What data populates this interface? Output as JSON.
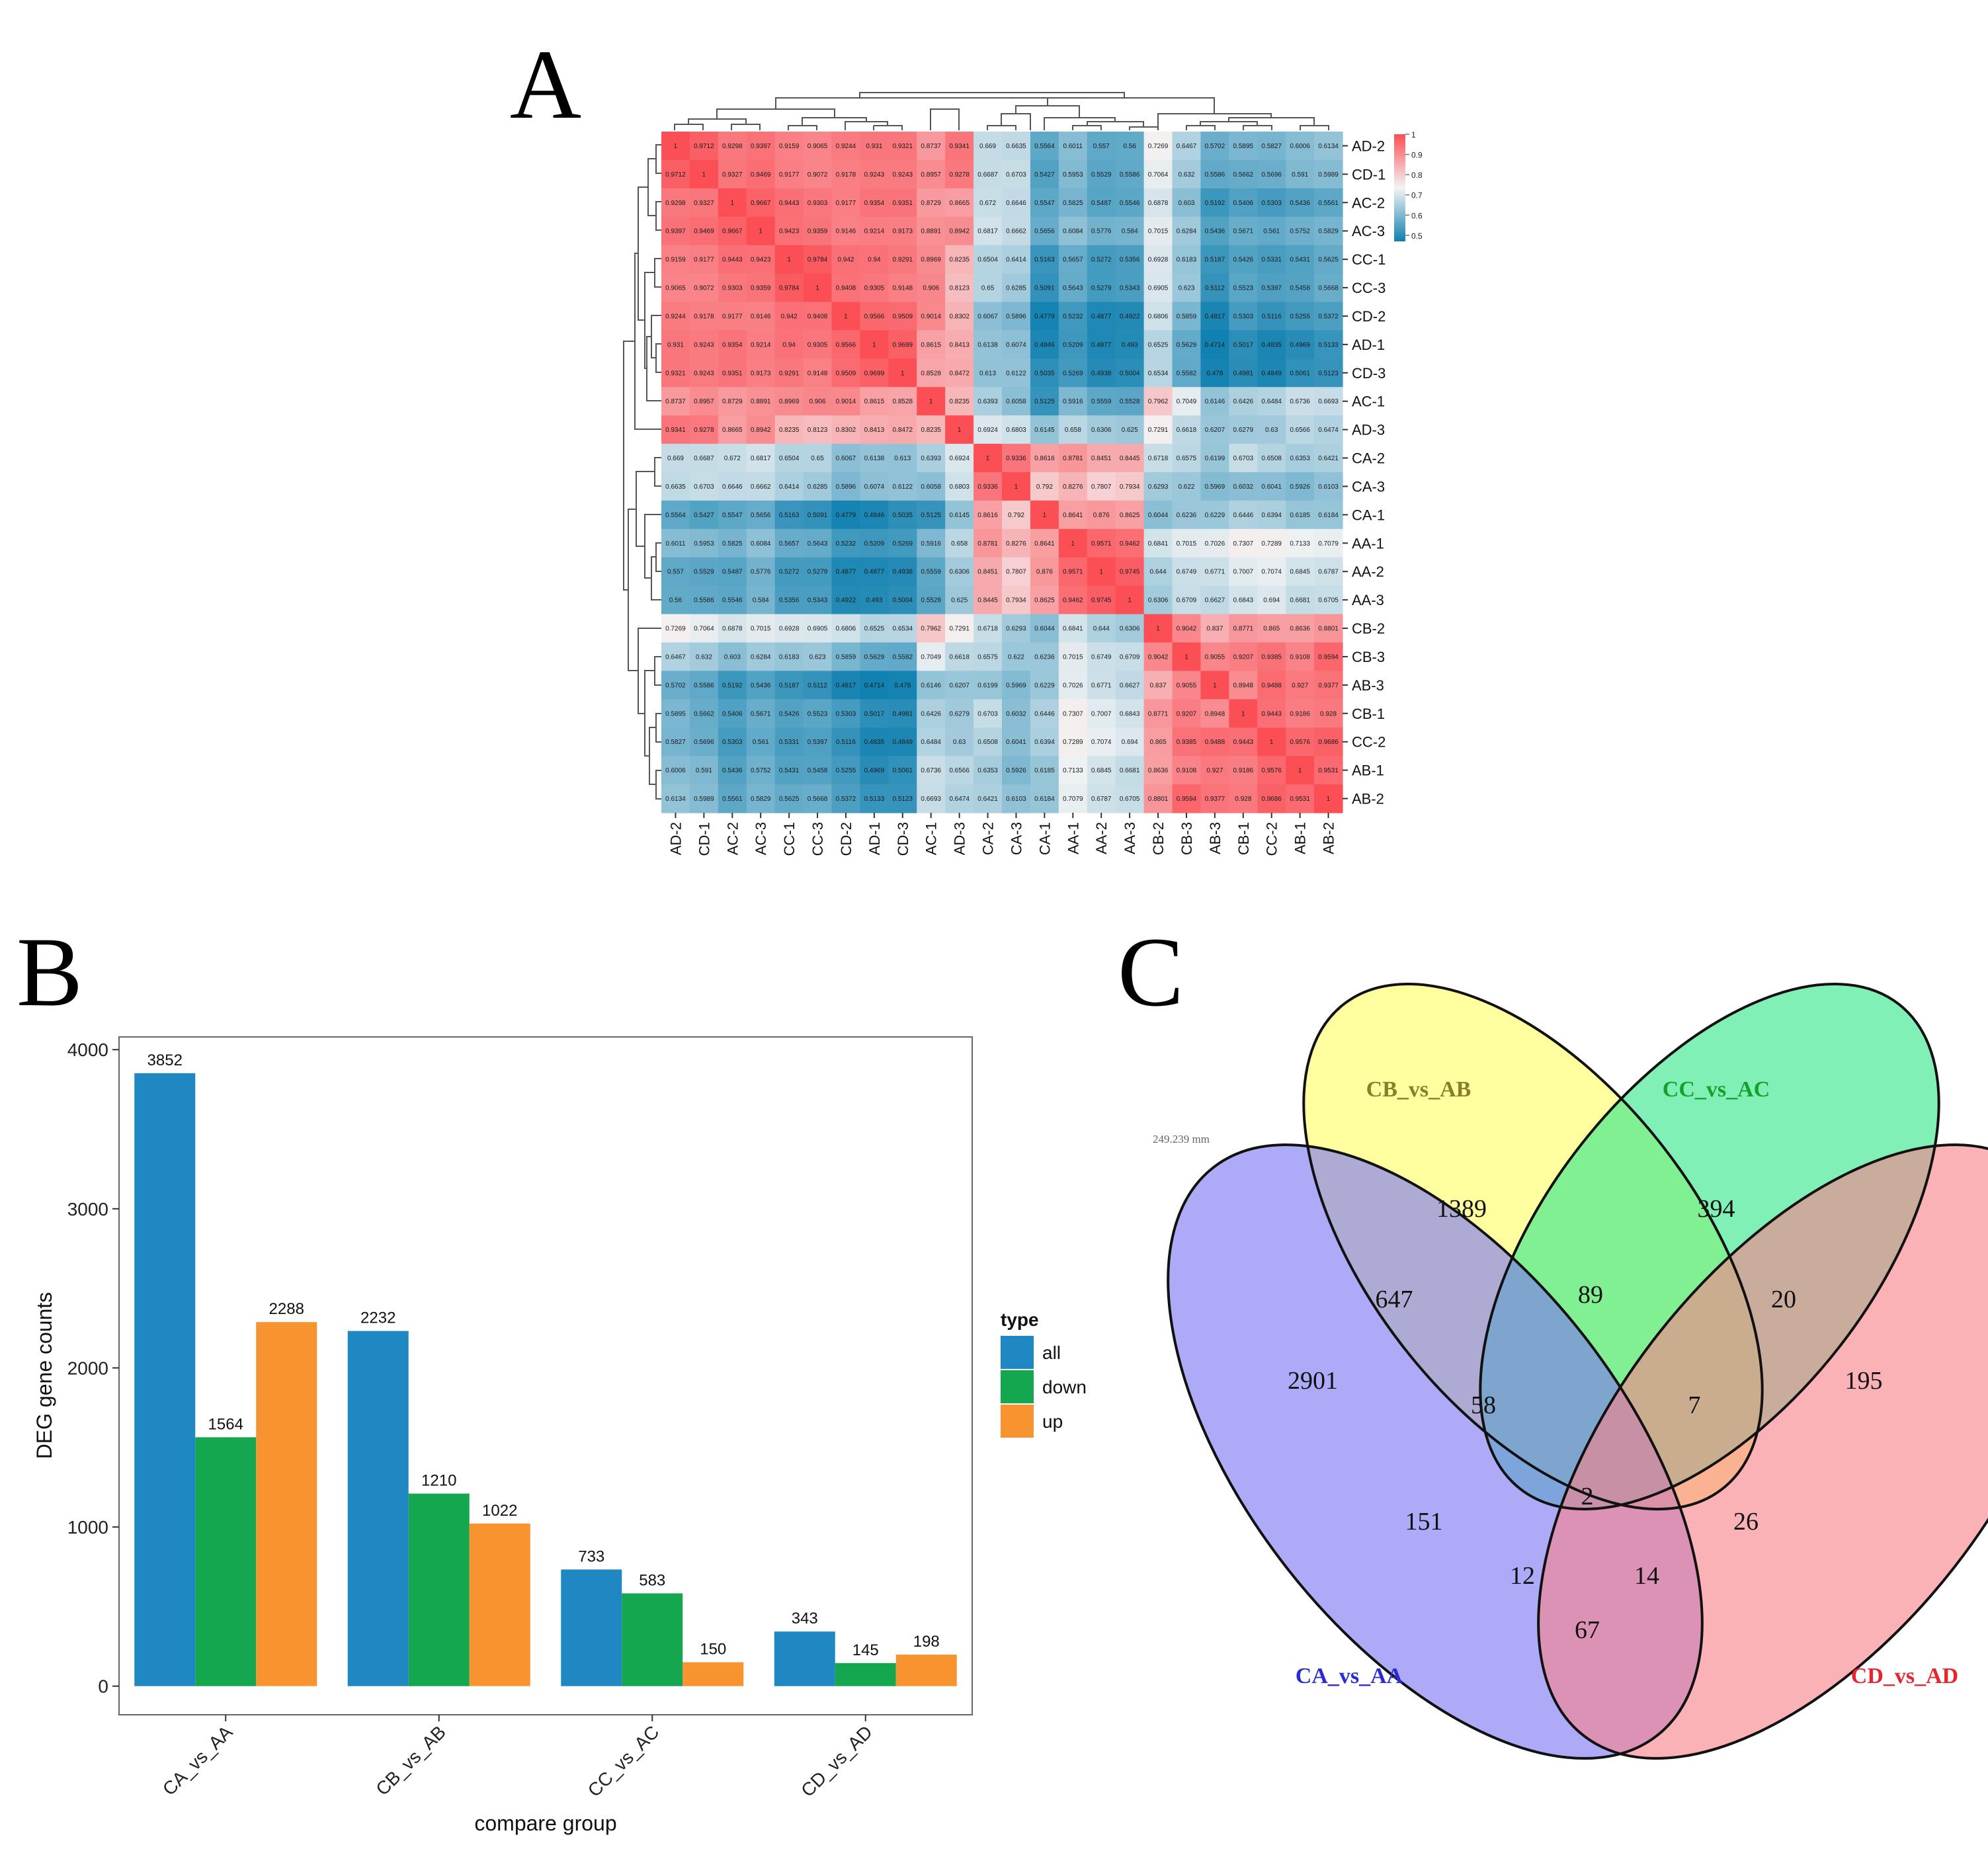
{
  "panels": {
    "a": "A",
    "b": "B",
    "c": "C"
  },
  "chart_data": [
    {
      "type": "heatmap",
      "panel": "A",
      "rows": [
        "AD-2",
        "CD-1",
        "AC-2",
        "AC-3",
        "CC-1",
        "CC-3",
        "CD-2",
        "AD-1",
        "CD-3",
        "AC-1",
        "AD-3",
        "CA-2",
        "CA-3",
        "CA-1",
        "AA-1",
        "AA-2",
        "AA-3",
        "CB-2",
        "CB-3",
        "AB-3",
        "CB-1",
        "CC-2",
        "AB-1",
        "AB-2"
      ],
      "columns": [
        "AD-2",
        "CD-1",
        "AC-2",
        "AC-3",
        "CC-1",
        "CC-3",
        "CD-2",
        "AD-1",
        "CD-3",
        "AC-1",
        "AD-3",
        "CA-2",
        "CA-3",
        "CA-1",
        "AA-1",
        "AA-2",
        "AA-3",
        "CB-2",
        "CB-3",
        "AB-3",
        "CB-1",
        "CC-2",
        "AB-1",
        "AB-2"
      ],
      "values": [
        [
          "1",
          "0.9712",
          "0.9298",
          "0.9397",
          "0.9159",
          "0.9065",
          "0.9244",
          "0.931",
          "0.9321",
          "0.8737",
          "0.9341",
          "0.669",
          "0.6635",
          "0.5564",
          "0.6011",
          "0.557",
          "0.56",
          "0.7269",
          "0.6467",
          "0.5702",
          "0.5895",
          "0.5827",
          "0.6006",
          "0.6134"
        ],
        [
          "0.9712",
          "1",
          "0.9327",
          "0.9469",
          "0.9177",
          "0.9072",
          "0.9178",
          "0.9243",
          "0.9243",
          "0.8957",
          "0.9278",
          "0.6687",
          "0.6703",
          "0.5427",
          "0.5953",
          "0.5529",
          "0.5586",
          "0.7064",
          "0.632",
          "0.5586",
          "0.5662",
          "0.5696",
          "0.591",
          "0.5989"
        ],
        [
          "0.9298",
          "0.9327",
          "1",
          "0.9667",
          "0.9443",
          "0.9303",
          "0.9177",
          "0.9354",
          "0.9351",
          "0.8729",
          "0.8665",
          "0.672",
          "0.6646",
          "0.5547",
          "0.5825",
          "0.5487",
          "0.5546",
          "0.6878",
          "0.603",
          "0.5192",
          "0.5406",
          "0.5303",
          "0.5436",
          "0.5561"
        ],
        [
          "0.9397",
          "0.9469",
          "0.9667",
          "1",
          "0.9423",
          "0.9359",
          "0.9146",
          "0.9214",
          "0.9173",
          "0.8891",
          "0.8942",
          "0.6817",
          "0.6662",
          "0.5656",
          "0.6084",
          "0.5776",
          "0.584",
          "0.7015",
          "0.6284",
          "0.5436",
          "0.5671",
          "0.561",
          "0.5752",
          "0.5829"
        ],
        [
          "0.9159",
          "0.9177",
          "0.9443",
          "0.9423",
          "1",
          "0.9784",
          "0.942",
          "0.94",
          "0.9291",
          "0.8969",
          "0.8235",
          "0.6504",
          "0.6414",
          "0.5163",
          "0.5657",
          "0.5272",
          "0.5356",
          "0.6928",
          "0.6183",
          "0.5187",
          "0.5426",
          "0.5331",
          "0.5431",
          "0.5625"
        ],
        [
          "0.9065",
          "0.9072",
          "0.9303",
          "0.9359",
          "0.9784",
          "1",
          "0.9408",
          "0.9305",
          "0.9148",
          "0.906",
          "0.8123",
          "0.65",
          "0.6285",
          "0.5091",
          "0.5643",
          "0.5279",
          "0.5343",
          "0.6905",
          "0.623",
          "0.5112",
          "0.5523",
          "0.5397",
          "0.5458",
          "0.5668"
        ],
        [
          "0.9244",
          "0.9178",
          "0.9177",
          "0.9146",
          "0.942",
          "0.9408",
          "1",
          "0.9566",
          "0.9509",
          "0.9014",
          "0.8302",
          "0.6067",
          "0.5896",
          "0.4779",
          "0.5232",
          "0.4877",
          "0.4922",
          "0.6806",
          "0.5859",
          "0.4817",
          "0.5303",
          "0.5116",
          "0.5255",
          "0.5372"
        ],
        [
          "0.931",
          "0.9243",
          "0.9354",
          "0.9214",
          "0.94",
          "0.9305",
          "0.9566",
          "1",
          "0.9699",
          "0.8615",
          "0.8413",
          "0.6138",
          "0.6074",
          "0.4846",
          "0.5209",
          "0.4877",
          "0.493",
          "0.6525",
          "0.5629",
          "0.4714",
          "0.5017",
          "0.4835",
          "0.4969",
          "0.5133"
        ],
        [
          "0.9321",
          "0.9243",
          "0.9351",
          "0.9173",
          "0.9291",
          "0.9148",
          "0.9509",
          "0.9699",
          "1",
          "0.8528",
          "0.8472",
          "0.613",
          "0.6122",
          "0.5035",
          "0.5269",
          "0.4938",
          "0.5004",
          "0.6534",
          "0.5582",
          "0.478",
          "0.4981",
          "0.4849",
          "0.5061",
          "0.5123"
        ],
        [
          "0.8737",
          "0.8957",
          "0.8729",
          "0.8891",
          "0.8969",
          "0.906",
          "0.9014",
          "0.8615",
          "0.8528",
          "1",
          "0.8235",
          "0.6393",
          "0.6058",
          "0.5125",
          "0.5916",
          "0.5559",
          "0.5528",
          "0.7962",
          "0.7049",
          "0.6146",
          "0.6426",
          "0.6484",
          "0.6736",
          "0.6693"
        ],
        [
          "0.9341",
          "0.9278",
          "0.8665",
          "0.8942",
          "0.8235",
          "0.8123",
          "0.8302",
          "0.8413",
          "0.8472",
          "0.8235",
          "1",
          "0.6924",
          "0.6803",
          "0.6145",
          "0.658",
          "0.6306",
          "0.625",
          "0.7291",
          "0.6618",
          "0.6207",
          "0.6279",
          "0.63",
          "0.6566",
          "0.6474"
        ],
        [
          "0.669",
          "0.6687",
          "0.672",
          "0.6817",
          "0.6504",
          "0.65",
          "0.6067",
          "0.6138",
          "0.613",
          "0.6393",
          "0.6924",
          "1",
          "0.9336",
          "0.8616",
          "0.8781",
          "0.8451",
          "0.8445",
          "0.6718",
          "0.6575",
          "0.6199",
          "0.6703",
          "0.6508",
          "0.6353",
          "0.6421"
        ],
        [
          "0.6635",
          "0.6703",
          "0.6646",
          "0.6662",
          "0.6414",
          "0.6285",
          "0.5896",
          "0.6074",
          "0.6122",
          "0.6058",
          "0.6803",
          "0.9336",
          "1",
          "0.792",
          "0.8276",
          "0.7807",
          "0.7934",
          "0.6293",
          "0.622",
          "0.5969",
          "0.6032",
          "0.6041",
          "0.5926",
          "0.6103"
        ],
        [
          "0.5564",
          "0.5427",
          "0.5547",
          "0.5656",
          "0.5163",
          "0.5091",
          "0.4779",
          "0.4846",
          "0.5035",
          "0.5125",
          "0.6145",
          "0.8616",
          "0.792",
          "1",
          "0.8641",
          "0.876",
          "0.8625",
          "0.6044",
          "0.6236",
          "0.6229",
          "0.6446",
          "0.6394",
          "0.6185",
          "0.6184"
        ],
        [
          "0.6011",
          "0.5953",
          "0.5825",
          "0.6084",
          "0.5657",
          "0.5643",
          "0.5232",
          "0.5209",
          "0.5269",
          "0.5916",
          "0.658",
          "0.8781",
          "0.8276",
          "0.8641",
          "1",
          "0.9571",
          "0.9462",
          "0.6841",
          "0.7015",
          "0.7026",
          "0.7307",
          "0.7289",
          "0.7133",
          "0.7079"
        ],
        [
          "0.557",
          "0.5529",
          "0.5487",
          "0.5776",
          "0.5272",
          "0.5279",
          "0.4877",
          "0.4877",
          "0.4938",
          "0.5559",
          "0.6306",
          "0.8451",
          "0.7807",
          "0.876",
          "0.9571",
          "1",
          "0.9745",
          "0.644",
          "0.6749",
          "0.6771",
          "0.7007",
          "0.7074",
          "0.6845",
          "0.6787"
        ],
        [
          "0.56",
          "0.5586",
          "0.5546",
          "0.584",
          "0.5356",
          "0.5343",
          "0.4922",
          "0.493",
          "0.5004",
          "0.5528",
          "0.625",
          "0.8445",
          "0.7934",
          "0.8625",
          "0.9462",
          "0.9745",
          "1",
          "0.6306",
          "0.6709",
          "0.6627",
          "0.6843",
          "0.694",
          "0.6681",
          "0.6705"
        ],
        [
          "0.7269",
          "0.7064",
          "0.6878",
          "0.7015",
          "0.6928",
          "0.6905",
          "0.6806",
          "0.6525",
          "0.6534",
          "0.7962",
          "0.7291",
          "0.6718",
          "0.6293",
          "0.6044",
          "0.6841",
          "0.644",
          "0.6306",
          "1",
          "0.9042",
          "0.837",
          "0.8771",
          "0.865",
          "0.8636",
          "0.8801"
        ],
        [
          "0.6467",
          "0.632",
          "0.603",
          "0.6284",
          "0.6183",
          "0.623",
          "0.5859",
          "0.5629",
          "0.5582",
          "0.7049",
          "0.6618",
          "0.6575",
          "0.622",
          "0.6236",
          "0.7015",
          "0.6749",
          "0.6709",
          "0.9042",
          "1",
          "0.9055",
          "0.9207",
          "0.9385",
          "0.9108",
          "0.9594"
        ],
        [
          "0.5702",
          "0.5586",
          "0.5192",
          "0.5436",
          "0.5187",
          "0.5112",
          "0.4817",
          "0.4714",
          "0.478",
          "0.6146",
          "0.6207",
          "0.6199",
          "0.5969",
          "0.6229",
          "0.7026",
          "0.6771",
          "0.6627",
          "0.837",
          "0.9055",
          "1",
          "0.8948",
          "0.9488",
          "0.927",
          "0.9377"
        ],
        [
          "0.5895",
          "0.5662",
          "0.5406",
          "0.5671",
          "0.5426",
          "0.5523",
          "0.5303",
          "0.5017",
          "0.4981",
          "0.6426",
          "0.6279",
          "0.6703",
          "0.6032",
          "0.6446",
          "0.7307",
          "0.7007",
          "0.6843",
          "0.8771",
          "0.9207",
          "0.8948",
          "1",
          "0.9443",
          "0.9186",
          "0.928"
        ],
        [
          "0.5827",
          "0.5696",
          "0.5303",
          "0.561",
          "0.5331",
          "0.5397",
          "0.5116",
          "0.4835",
          "0.4849",
          "0.6484",
          "0.63",
          "0.6508",
          "0.6041",
          "0.6394",
          "0.7289",
          "0.7074",
          "0.694",
          "0.865",
          "0.9385",
          "0.9488",
          "0.9443",
          "1",
          "0.9576",
          "0.9686"
        ],
        [
          "0.6006",
          "0.591",
          "0.5436",
          "0.5752",
          "0.5431",
          "0.5458",
          "0.5255",
          "0.4969",
          "0.5061",
          "0.6736",
          "0.6566",
          "0.6353",
          "0.5926",
          "0.6185",
          "0.7133",
          "0.6845",
          "0.6681",
          "0.8636",
          "0.9108",
          "0.927",
          "0.9186",
          "0.9576",
          "1",
          "0.9531"
        ],
        [
          "0.6134",
          "0.5989",
          "0.5561",
          "0.5829",
          "0.5625",
          "0.5668",
          "0.5372",
          "0.5133",
          "0.5123",
          "0.6693",
          "0.6474",
          "0.6421",
          "0.6103",
          "0.6184",
          "0.7079",
          "0.6787",
          "0.6705",
          "0.8801",
          "0.9594",
          "0.9377",
          "0.928",
          "0.9686",
          "0.9531",
          "1"
        ]
      ],
      "colorbar": {
        "ticks": [
          "1",
          "0.9",
          "0.8",
          "0.7",
          "0.6",
          "0.5"
        ],
        "range": [
          0.47,
          1
        ]
      },
      "colors": {
        "high": "#fb4e55",
        "mid": "#f4f4f4",
        "low": "#0f80b0"
      }
    },
    {
      "type": "bar",
      "panel": "B",
      "categories": [
        "CA_vs_AA",
        "CB_vs_AB",
        "CC_vs_AC",
        "CD_vs_AD"
      ],
      "series": [
        {
          "name": "all",
          "values": [
            3852,
            2232,
            733,
            343
          ],
          "color": "#1f88c3"
        },
        {
          "name": "down",
          "values": [
            1564,
            1210,
            583,
            145
          ],
          "color": "#15a650"
        },
        {
          "name": "up",
          "values": [
            2288,
            1022,
            150,
            198
          ],
          "color": "#f7942f"
        }
      ],
      "xlabel": "compare group",
      "ylabel": "DEG gene counts",
      "ylim": [
        -180,
        4080
      ],
      "yticks": [
        0,
        1000,
        2000,
        3000,
        4000
      ],
      "legend": {
        "title": "type",
        "position": "right"
      },
      "grid": false
    },
    {
      "type": "venn",
      "panel": "C",
      "note": "249.239 mm",
      "sets": [
        {
          "name": "CB_vs_AB",
          "color": "#ffff66",
          "label_color": "#8b7d2a"
        },
        {
          "name": "CC_vs_AC",
          "color": "#33e68a",
          "label_color": "#16a12b"
        },
        {
          "name": "CA_vs_AA",
          "color": "#7a77f2",
          "label_color": "#2a2ad6"
        },
        {
          "name": "CD_vs_AD",
          "color": "#f7828a",
          "label_color": "#e8242c"
        }
      ],
      "regions": {
        "only_CB": "1389",
        "only_CC": "394",
        "only_CA": "2901",
        "only_CD": "195",
        "CA_CB": "647",
        "CB_CC": "89",
        "CC_CD": "20",
        "CA_CB_CC": "58",
        "CB_CC_CD": "7",
        "all_four": "2",
        "CA_CC": "151",
        "CB_CD": "26",
        "CA_CC_CD": "12",
        "CA_CB_CD": "14",
        "CA_CD": "67"
      }
    }
  ]
}
